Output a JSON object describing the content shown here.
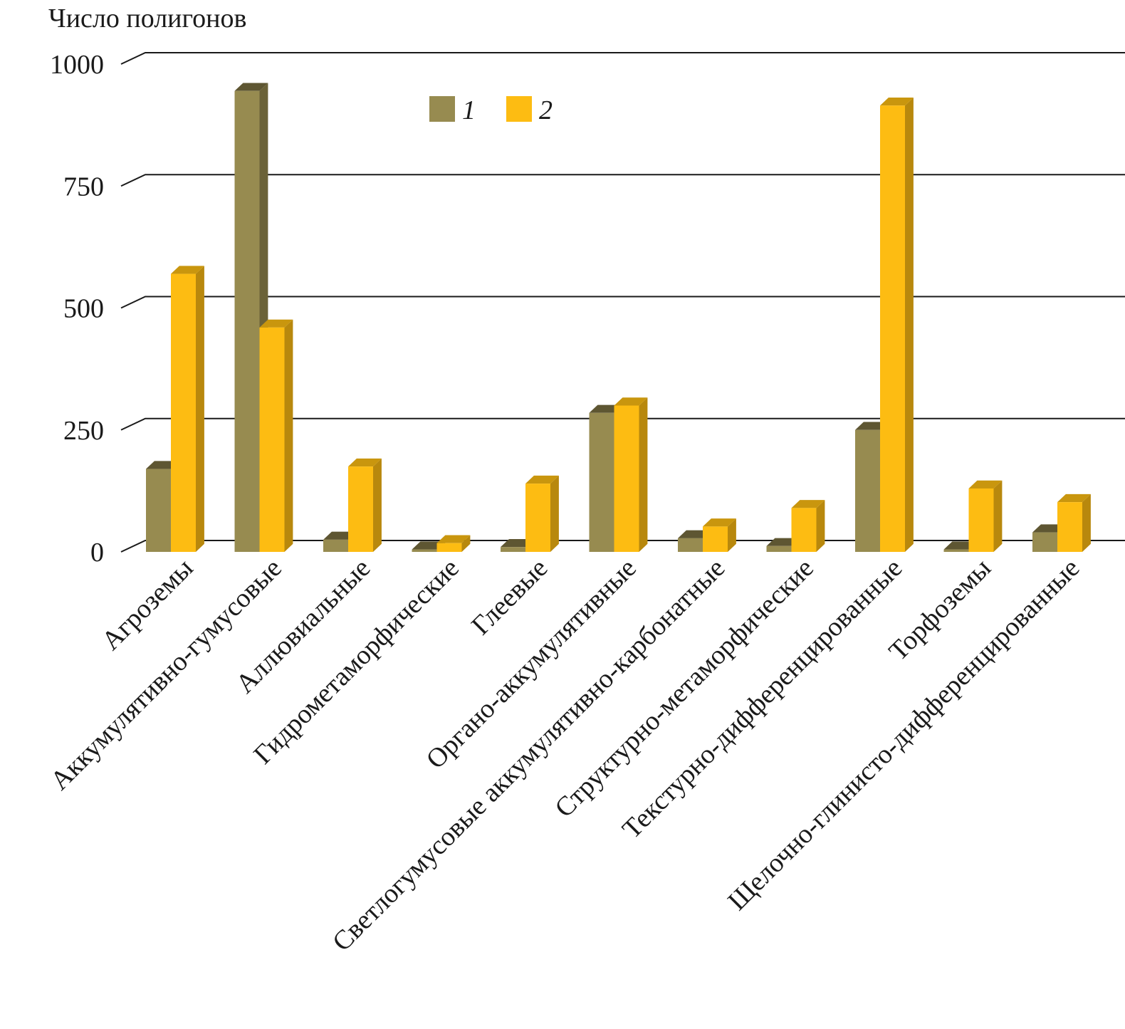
{
  "chart_data": {
    "type": "bar",
    "style": "3d-clustered",
    "title": "",
    "ylabel": "Число полигонов",
    "xlabel": "",
    "ylim": [
      0,
      1000
    ],
    "yticks": [
      0,
      250,
      500,
      750,
      1000
    ],
    "grid": true,
    "legend": "top-center",
    "categories": [
      "Агроземы",
      "Аккумулятивно-гумусовые",
      "Аллювиальные",
      "Гидрометаморфические",
      "Глеевые",
      "Органо-аккумулятивные",
      "Светлогумусовые аккумулятивно-карбонатные",
      "Структурно-метаморфические",
      "Текстурно-дифференцированные",
      "Торфоземы",
      "Щелочно-глинисто-дифференцированные"
    ],
    "series": [
      {
        "name": "1",
        "color": "#978b50",
        "side": "#6b6238",
        "top": "#5e5632",
        "values": [
          170,
          945,
          25,
          5,
          10,
          285,
          28,
          12,
          250,
          5,
          40
        ]
      },
      {
        "name": "2",
        "color": "#fdbc12",
        "side": "#b8880d",
        "top": "#c9960e",
        "values": [
          570,
          460,
          175,
          18,
          140,
          300,
          52,
          90,
          915,
          130,
          102
        ]
      }
    ]
  }
}
